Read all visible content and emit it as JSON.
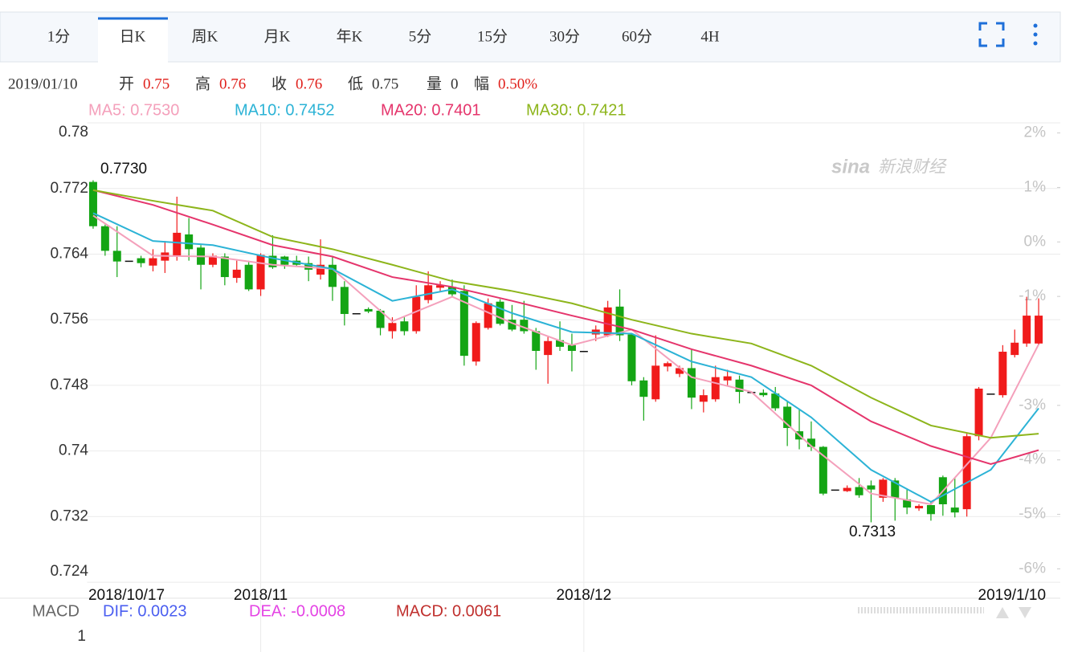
{
  "tabs": [
    "1分",
    "日K",
    "周K",
    "月K",
    "年K",
    "5分",
    "15分",
    "30分",
    "60分",
    "4H"
  ],
  "active_tab": 1,
  "info": {
    "date": "2019/01/10",
    "fields": [
      {
        "label": "开",
        "value": 0.75
      },
      {
        "label": "高",
        "value": 0.76
      },
      {
        "label": "收",
        "value": 0.76
      },
      {
        "label": "低",
        "value": 0.75
      },
      {
        "label": "量",
        "value": 0
      },
      {
        "label": "幅",
        "value": "0.50%"
      }
    ]
  },
  "watermark": {
    "logo": "sina",
    "text": "新浪财经"
  },
  "chart_data": {
    "type": "candlestick",
    "categories": [
      "2018/10/17",
      null,
      null,
      null,
      null,
      null,
      null,
      null,
      null,
      null,
      null,
      null,
      null,
      null,
      "2018/11",
      null,
      null,
      null,
      null,
      null,
      null,
      null,
      null,
      null,
      null,
      null,
      null,
      null,
      null,
      null,
      null,
      null,
      null,
      null,
      null,
      null,
      null,
      null,
      null,
      null,
      null,
      "2018/12",
      null,
      null,
      null,
      null,
      null,
      null,
      null,
      null,
      null,
      null,
      null,
      null,
      null,
      null,
      null,
      null,
      null,
      null,
      null,
      null,
      null,
      null,
      null,
      null,
      null,
      null,
      null,
      null,
      null,
      null,
      null,
      null,
      null,
      null,
      null,
      null,
      null,
      "2019/1/10"
    ],
    "open": [
      0.7728,
      0.7674,
      0.7644,
      0.7632,
      0.7635,
      0.7626,
      0.7632,
      0.7638,
      0.7664,
      0.7648,
      0.7627,
      0.7637,
      0.7611,
      0.7627,
      0.7597,
      0.7638,
      0.7637,
      0.7632,
      0.7629,
      0.7615,
      0.7627,
      0.76,
      0.7568,
      0.7573,
      0.7571,
      0.7546,
      0.7558,
      0.7546,
      0.7584,
      0.7599,
      0.76,
      0.7595,
      0.7509,
      0.755,
      0.7582,
      0.756,
      0.756,
      0.7546,
      0.7517,
      0.7535,
      0.7529,
      0.7522,
      0.7542,
      0.7541,
      0.7576,
      0.7542,
      0.7486,
      0.7463,
      0.7503,
      0.7494,
      0.7501,
      0.746,
      0.7463,
      0.7486,
      0.7487,
      0.7472,
      0.7471,
      0.747,
      0.7454,
      0.7424,
      0.7415,
      0.7405,
      0.7353,
      0.7351,
      0.7356,
      0.7358,
      0.7343,
      0.7364,
      0.7341,
      0.733,
      0.7334,
      0.7368,
      0.7331,
      0.7329,
      0.7418,
      0.747,
      0.7468,
      0.7517,
      0.7531,
      0.7531
    ],
    "high": [
      0.773,
      0.7676,
      0.7674,
      0.7632,
      0.7638,
      0.7646,
      0.7656,
      0.771,
      0.7684,
      0.7651,
      0.7641,
      0.7641,
      0.7632,
      0.7632,
      0.7641,
      0.7663,
      0.7638,
      0.7638,
      0.7637,
      0.7658,
      0.7638,
      0.7607,
      0.7568,
      0.7575,
      0.7573,
      0.7563,
      0.7563,
      0.7602,
      0.7619,
      0.7607,
      0.7609,
      0.7602,
      0.7558,
      0.7586,
      0.7585,
      0.7578,
      0.7583,
      0.755,
      0.7539,
      0.7558,
      0.7543,
      0.7522,
      0.7553,
      0.7583,
      0.7597,
      0.7543,
      0.749,
      0.7541,
      0.7509,
      0.7504,
      0.7524,
      0.7475,
      0.7504,
      0.7499,
      0.7492,
      0.7472,
      0.7475,
      0.7478,
      0.746,
      0.7451,
      0.7436,
      0.7406,
      0.7353,
      0.7358,
      0.7367,
      0.7364,
      0.7367,
      0.7367,
      0.7353,
      0.7335,
      0.7338,
      0.737,
      0.7367,
      0.7421,
      0.7478,
      0.747,
      0.7529,
      0.7548,
      0.7588,
      0.7586
    ],
    "low": [
      0.7671,
      0.7638,
      0.7612,
      0.7632,
      0.7624,
      0.7619,
      0.7617,
      0.7632,
      0.7632,
      0.7597,
      0.7624,
      0.7602,
      0.7605,
      0.7595,
      0.7589,
      0.7622,
      0.7622,
      0.7625,
      0.7607,
      0.7609,
      0.7583,
      0.7553,
      0.7568,
      0.7568,
      0.7541,
      0.7537,
      0.7541,
      0.7543,
      0.758,
      0.7595,
      0.7588,
      0.7504,
      0.7504,
      0.7548,
      0.7553,
      0.7546,
      0.7543,
      0.7499,
      0.7482,
      0.7522,
      0.7497,
      0.7522,
      0.7534,
      0.7539,
      0.7534,
      0.748,
      0.7437,
      0.746,
      0.7497,
      0.749,
      0.7451,
      0.7447,
      0.746,
      0.748,
      0.7458,
      0.7472,
      0.7466,
      0.7449,
      0.7406,
      0.7402,
      0.74,
      0.7346,
      0.7353,
      0.735,
      0.7343,
      0.7313,
      0.7338,
      0.7315,
      0.7323,
      0.7327,
      0.7315,
      0.7321,
      0.7319,
      0.732,
      0.7413,
      0.747,
      0.7465,
      0.7514,
      0.7527,
      0.7529
    ],
    "close": [
      0.7674,
      0.7644,
      0.7631,
      0.7632,
      0.7629,
      0.7635,
      0.7642,
      0.7666,
      0.7646,
      0.7627,
      0.7638,
      0.7612,
      0.7621,
      0.7597,
      0.7639,
      0.7624,
      0.7627,
      0.7627,
      0.7621,
      0.7627,
      0.76,
      0.7567,
      0.7568,
      0.757,
      0.755,
      0.7556,
      0.7546,
      0.7588,
      0.7602,
      0.7602,
      0.7591,
      0.7516,
      0.7556,
      0.758,
      0.7555,
      0.7548,
      0.7546,
      0.7522,
      0.7534,
      0.7527,
      0.7522,
      0.7522,
      0.7548,
      0.7575,
      0.7541,
      0.7485,
      0.7466,
      0.7504,
      0.7507,
      0.7501,
      0.7465,
      0.7468,
      0.749,
      0.7491,
      0.7472,
      0.7472,
      0.7468,
      0.7452,
      0.7428,
      0.7414,
      0.7405,
      0.7348,
      0.7353,
      0.7355,
      0.7346,
      0.7353,
      0.7365,
      0.7343,
      0.7331,
      0.7333,
      0.7323,
      0.7335,
      0.7325,
      0.7418,
      0.7476,
      0.747,
      0.7521,
      0.7532,
      0.7565,
      0.7565
    ],
    "up_color": "#f01b1b",
    "down_color": "#14a514",
    "flat_color": "#111111",
    "ylim": [
      0.7243,
      0.7801
    ],
    "yticks": [
      0.78,
      0.772,
      0.764,
      0.756,
      0.748,
      0.74,
      0.732,
      0.724
    ],
    "y2lim": [
      -6.2,
      2.2
    ],
    "y2ticks": [
      {
        "value": 2,
        "label": "2%"
      },
      {
        "value": 1,
        "label": "1%"
      },
      {
        "value": 0,
        "label": "0%"
      },
      {
        "value": -1,
        "label": "-1%"
      },
      {
        "value": -3,
        "label": "-3%"
      },
      {
        "value": -4,
        "label": "-4%"
      },
      {
        "value": -5,
        "label": "-5%"
      },
      {
        "value": -6,
        "label": "-6%"
      }
    ],
    "grid": true,
    "series": [
      {
        "name": "MA5: 0.7530",
        "color": "#f4a0bb",
        "x": [
          0,
          5,
          10,
          15,
          20,
          25,
          30,
          35,
          40,
          45,
          50,
          55,
          60,
          65,
          70,
          75,
          79
        ],
        "values": [
          0.7687,
          0.7638,
          0.7637,
          0.7627,
          0.7622,
          0.7558,
          0.7588,
          0.7556,
          0.7529,
          0.7548,
          0.749,
          0.7472,
          0.7406,
          0.7348,
          0.7335,
          0.7416,
          0.753
        ]
      },
      {
        "name": "MA10: 0.7452",
        "color": "#2cb3d6",
        "x": [
          0,
          5,
          10,
          15,
          20,
          25,
          30,
          35,
          40,
          45,
          50,
          55,
          60,
          65,
          70,
          75,
          79
        ],
        "values": [
          0.769,
          0.7656,
          0.7651,
          0.7635,
          0.7622,
          0.7583,
          0.7597,
          0.7568,
          0.7545,
          0.7543,
          0.7509,
          0.749,
          0.7441,
          0.7377,
          0.7338,
          0.7377,
          0.7452
        ]
      },
      {
        "name": "MA20: 0.7401",
        "color": "#e5356c",
        "x": [
          0,
          5,
          10,
          15,
          20,
          25,
          30,
          35,
          40,
          45,
          50,
          55,
          60,
          65,
          70,
          75,
          79
        ],
        "values": [
          0.7718,
          0.77,
          0.7676,
          0.7651,
          0.7637,
          0.7612,
          0.76,
          0.7583,
          0.7565,
          0.7548,
          0.7524,
          0.7504,
          0.748,
          0.7436,
          0.7406,
          0.7384,
          0.7401
        ]
      },
      {
        "name": "MA30: 0.7421",
        "color": "#8db51b",
        "x": [
          0,
          5,
          10,
          15,
          20,
          25,
          30,
          35,
          40,
          45,
          50,
          55,
          60,
          65,
          70,
          75,
          79
        ],
        "values": [
          0.7718,
          0.7705,
          0.7693,
          0.7661,
          0.7646,
          0.7627,
          0.7607,
          0.7595,
          0.758,
          0.756,
          0.7543,
          0.7531,
          0.7504,
          0.7465,
          0.7431,
          0.7416,
          0.7421
        ]
      }
    ],
    "annotations": [
      "0.7730",
      "0.7313"
    ]
  },
  "macd": {
    "title": "MACD",
    "items": [
      {
        "text": "DIF: 0.0023",
        "color": "#4a5ef0"
      },
      {
        "text": "DEA: -0.0008",
        "color": "#e443e4"
      },
      {
        "text": "MACD: 0.0061",
        "color": "#c0302e"
      }
    ],
    "yticks": [
      1
    ]
  }
}
